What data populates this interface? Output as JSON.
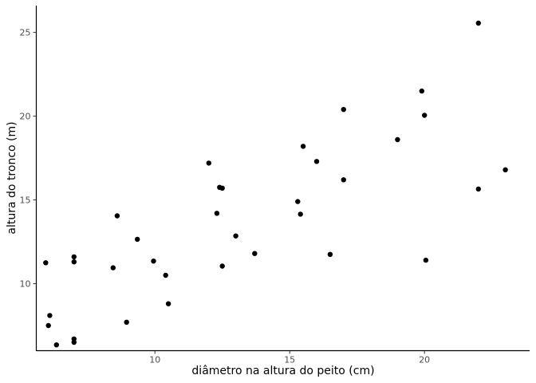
{
  "chart_data": {
    "type": "scatter",
    "title": "",
    "xlabel": "diâmetro na altura do peito (cm)",
    "ylabel": "altura do tronco (m)",
    "xlim": [
      5.6,
      23.9
    ],
    "ylim": [
      6.0,
      26.6
    ],
    "xticks": [
      10,
      15,
      20
    ],
    "yticks": [
      10,
      15,
      20,
      25
    ],
    "grid": false,
    "legend": "none",
    "point_color": "#000000",
    "x": [
      5.95,
      6.1,
      6.05,
      6.35,
      7.0,
      7.0,
      7.0,
      7.0,
      8.45,
      8.6,
      8.95,
      9.35,
      9.95,
      10.4,
      10.5,
      12.0,
      12.3,
      12.4,
      12.5,
      12.5,
      13.0,
      13.7,
      15.3,
      15.4,
      15.5,
      16.0,
      16.5,
      17.0,
      17.0,
      19.0,
      19.9,
      20.0,
      20.05,
      22.0,
      22.0,
      23.0
    ],
    "y": [
      11.25,
      8.1,
      7.5,
      6.35,
      6.5,
      6.7,
      11.3,
      11.6,
      10.95,
      14.05,
      7.7,
      12.65,
      11.35,
      10.5,
      8.8,
      17.2,
      14.2,
      15.75,
      15.7,
      11.05,
      12.85,
      11.8,
      14.9,
      14.15,
      18.2,
      17.3,
      11.75,
      20.4,
      16.2,
      18.6,
      21.5,
      20.05,
      11.4,
      25.55,
      15.65,
      16.8
    ]
  }
}
